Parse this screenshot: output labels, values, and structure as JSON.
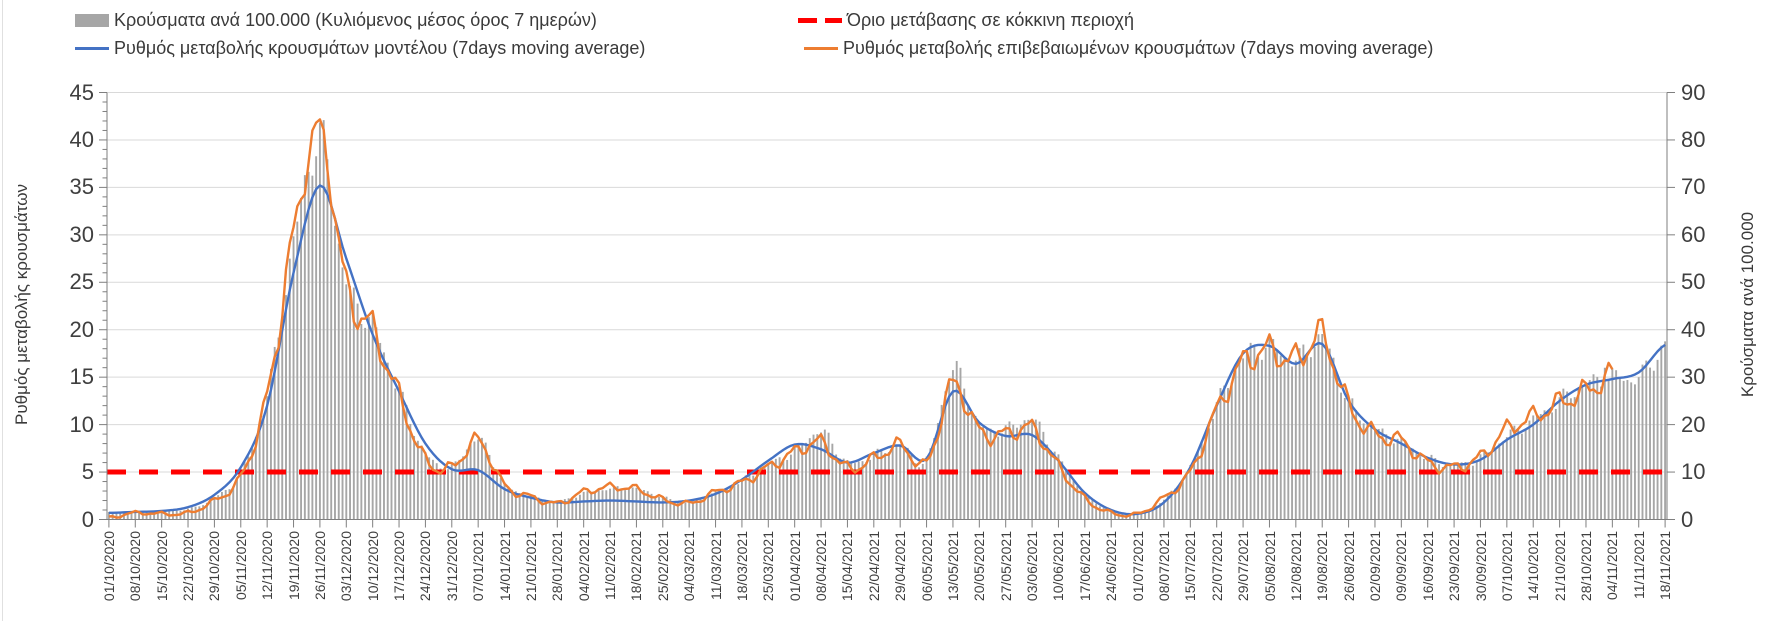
{
  "chart_data": {
    "type": "bar+line combo, dual y-axis, daily bars with weekly x labels",
    "note": "values are weekly estimates read from the plot; underlying chart has daily resolution",
    "categories": [
      "01/10/2020",
      "08/10/2020",
      "15/10/2020",
      "22/10/2020",
      "29/10/2020",
      "05/11/2020",
      "12/11/2020",
      "19/11/2020",
      "26/11/2020",
      "03/12/2020",
      "10/12/2020",
      "17/12/2020",
      "24/12/2020",
      "31/12/2020",
      "07/01/2021",
      "14/01/2021",
      "21/01/2021",
      "28/01/2021",
      "04/02/2021",
      "11/02/2021",
      "18/02/2021",
      "25/02/2021",
      "04/03/2021",
      "11/03/2021",
      "18/03/2021",
      "25/03/2021",
      "01/04/2021",
      "08/04/2021",
      "15/04/2021",
      "22/04/2021",
      "29/04/2021",
      "06/05/2021",
      "13/05/2021",
      "20/05/2021",
      "27/05/2021",
      "03/06/2021",
      "10/06/2021",
      "17/06/2021",
      "24/06/2021",
      "01/07/2021",
      "08/07/2021",
      "15/07/2021",
      "22/07/2021",
      "29/07/2021",
      "05/08/2021",
      "12/08/2021",
      "19/08/2021",
      "26/08/2021",
      "02/09/2021",
      "09/09/2021",
      "16/09/2021",
      "23/09/2021",
      "30/09/2021",
      "07/10/2021",
      "14/10/2021",
      "21/10/2021",
      "28/10/2021",
      "04/11/2021",
      "11/11/2021",
      "18/11/2021"
    ],
    "series": [
      {
        "name": "Κρούσματα ανά 100.000 (Κυλιόμενος μέσος όρος 7 ημερών)",
        "type": "bar",
        "yaxis": "right",
        "color": "#a6a6a6",
        "values": [
          1.5,
          1.6,
          1.8,
          2.2,
          4.5,
          10,
          26,
          58,
          80,
          50,
          41,
          27,
          14,
          11,
          17,
          7.5,
          5,
          3.8,
          5.5,
          6.5,
          6.5,
          4.7,
          3.6,
          5.8,
          8.2,
          11.5,
          14.5,
          18.5,
          12,
          13.5,
          15.5,
          12.5,
          31.5,
          20,
          19,
          21,
          13,
          5.5,
          1.8,
          1.2,
          4.2,
          11,
          24,
          34,
          36.5,
          33.5,
          38,
          25,
          19,
          16.5,
          13,
          11.5,
          13,
          17.5,
          21,
          25,
          28.5,
          30,
          30,
          36.5
        ]
      },
      {
        "name": "Ρυθμός μεταβολής κρουσμάτων μοντέλου (7days moving average)",
        "type": "line",
        "yaxis": "left",
        "color": "#4472c4",
        "values": [
          0.7,
          0.8,
          0.9,
          1.3,
          2.6,
          5.5,
          12,
          26,
          35.2,
          27.5,
          19.5,
          13.5,
          8,
          5.3,
          5.2,
          3.2,
          2.3,
          1.8,
          1.9,
          2,
          1.9,
          1.8,
          2,
          2.7,
          4.2,
          6.2,
          7.9,
          7.4,
          6,
          7,
          7.8,
          6.4,
          13.5,
          10.2,
          8.8,
          8.9,
          6.2,
          2.8,
          1,
          0.6,
          1.8,
          5.5,
          12,
          17.5,
          18.3,
          16.4,
          18.5,
          12.5,
          9.5,
          8,
          6.5,
          5.8,
          6.3,
          8.4,
          10,
          12.5,
          14.2,
          14.8,
          15.5,
          18.4
        ]
      },
      {
        "name": "Ρυθμός μεταβολής επιβεβαιωμένων κρουσμάτων (7days moving average)",
        "type": "line",
        "yaxis": "left",
        "color": "#ed7d31",
        "values": [
          0.2,
          0.7,
          0.6,
          0.7,
          2,
          4.5,
          13,
          30,
          41,
          24.5,
          20,
          13,
          6.3,
          5.5,
          8.3,
          3.6,
          2.4,
          1.7,
          2.9,
          3.4,
          3.2,
          2.1,
          1.7,
          2.9,
          3.9,
          5.5,
          7.1,
          8.1,
          5.4,
          6.4,
          7.8,
          5.9,
          14.2,
          9.3,
          9,
          9.6,
          5.6,
          2.2,
          0.7,
          0.6,
          2.3,
          5,
          11.5,
          16.5,
          17.8,
          16.8,
          19.3,
          12,
          9,
          8.3,
          6,
          5.5,
          6.6,
          9.5,
          10.8,
          12.3,
          13.5,
          15.2,
          null,
          null
        ]
      },
      {
        "name": "Όριο μετάβασης σε κόκκινη περιοχή",
        "type": "threshold-line",
        "yaxis": "left",
        "color": "#ff0000",
        "value": 5
      }
    ],
    "left_axis": {
      "label": "Ρυθμός μεταβολής κρουσμάτων",
      "min": 0,
      "max": 45,
      "step": 5,
      "minor_step": 1
    },
    "right_axis": {
      "label": "Κρούσματα ανά 100.000",
      "min": 0,
      "max": 90,
      "step": 10
    },
    "legend_position": "top",
    "grid": true
  },
  "style": {
    "grid_color": "#d9d9d9",
    "axis_color": "#7f7f7f",
    "text_color": "#3f3f3f",
    "bar_color": "#a6a6a6",
    "model_line_color": "#4472c4",
    "confirmed_line_color": "#ed7d31",
    "threshold_color": "#ff0000"
  }
}
